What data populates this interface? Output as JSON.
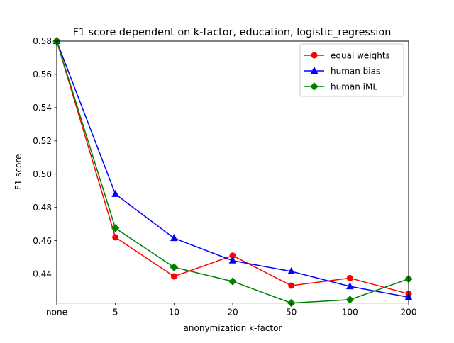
{
  "chart_data": {
    "type": "line",
    "title": "F1 score dependent on k-factor, education, logistic_regression",
    "xlabel": "anonymization k-factor",
    "ylabel": "F1 score",
    "categories": [
      "none",
      "5",
      "10",
      "20",
      "50",
      "100",
      "200"
    ],
    "ylim": [
      0.4225,
      0.58
    ],
    "yticks": [
      0.44,
      0.46,
      0.48,
      0.5,
      0.52,
      0.54,
      0.56,
      0.58
    ],
    "grid": false,
    "legend_position": "top-right",
    "series": [
      {
        "name": "equal weights",
        "color": "#ff0000",
        "marker": "circle",
        "values": [
          0.58,
          0.462,
          0.4385,
          0.451,
          0.433,
          0.4375,
          0.428
        ]
      },
      {
        "name": "human bias",
        "color": "#0000ff",
        "marker": "triangle",
        "values": [
          0.58,
          0.488,
          0.4615,
          0.448,
          0.4415,
          0.4325,
          0.426
        ]
      },
      {
        "name": "human iML",
        "color": "#008000",
        "marker": "diamond",
        "values": [
          0.58,
          0.4675,
          0.444,
          0.4355,
          0.4225,
          0.4245,
          0.437
        ]
      }
    ]
  }
}
